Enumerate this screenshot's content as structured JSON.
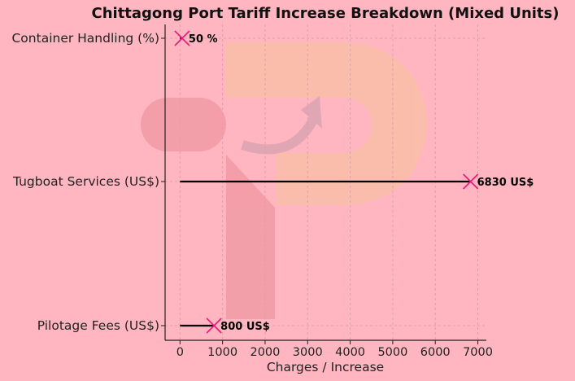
{
  "chart_data": {
    "type": "dot",
    "title": "Chittagong Port Tariff Increase Breakdown (Mixed Units)",
    "xlabel": "Charges / Increase",
    "ylabel": "",
    "xlim": [
      -350,
      7200
    ],
    "xticks": [
      0,
      1000,
      2000,
      3000,
      4000,
      5000,
      6000,
      7000
    ],
    "grid": true,
    "categories": [
      "Container Handling (%)",
      "Tugboat Services (US$)",
      "Pilotage Fees (US$)"
    ],
    "values": [
      50,
      6830,
      800
    ],
    "value_labels": [
      "50 %",
      "6830 US$",
      "800 US$"
    ],
    "colors": {
      "background": "#ffb6c1",
      "line": "#000000",
      "marker": "#e8187a"
    }
  }
}
